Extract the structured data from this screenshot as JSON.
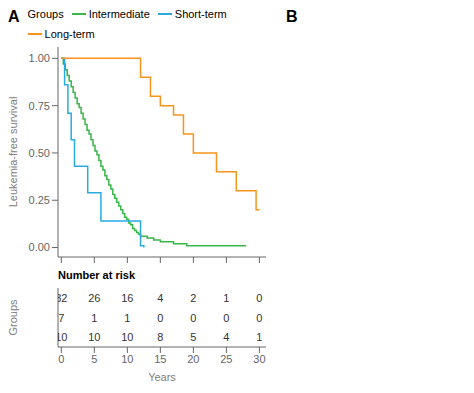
{
  "chart_data": [
    {
      "type": "line",
      "line_style": "step",
      "annotations": [
        "A",
        "B"
      ],
      "ylabel": "Leukemia-free survival",
      "legend_title": "Groups",
      "legend": "top",
      "tick_labels": "y",
      "xlim": [
        -0.5,
        31
      ],
      "ylim": [
        -0.05,
        1.06
      ],
      "xticks": [
        0,
        5,
        10,
        15,
        20,
        25,
        30
      ],
      "yticks": [
        {
          "value": 0.0,
          "label": "0.00"
        },
        {
          "value": 0.25,
          "label": "0.25"
        },
        {
          "value": 0.5,
          "label": "0.50"
        },
        {
          "value": 0.75,
          "label": "0.75"
        },
        {
          "value": 1.0,
          "label": "1.00"
        }
      ],
      "series": [
        {
          "name": "Intermediate",
          "color": "#39b54a",
          "x": [
            0,
            0.3,
            0.6,
            0.9,
            1.2,
            1.5,
            1.8,
            2.1,
            2.4,
            2.7,
            3.0,
            3.3,
            3.6,
            3.9,
            4.2,
            4.5,
            4.8,
            5.1,
            5.4,
            5.7,
            6.0,
            6.3,
            6.6,
            6.9,
            7.2,
            7.5,
            7.8,
            8.1,
            8.4,
            8.7,
            9.0,
            9.3,
            9.6,
            9.9,
            10.2,
            10.5,
            10.8,
            11.1,
            11.4,
            11.7,
            12.0,
            12.5,
            13.0,
            13.5,
            14.0,
            14.5,
            15.0,
            15.5,
            16.0,
            17.0,
            18.0,
            19.0,
            20.0,
            21.0,
            22.0,
            23.0,
            24.0,
            25.0,
            26.0,
            27.0,
            28.0
          ],
          "values": [
            1.0,
            0.97,
            0.94,
            0.91,
            0.88,
            0.85,
            0.82,
            0.79,
            0.76,
            0.74,
            0.71,
            0.68,
            0.65,
            0.62,
            0.6,
            0.57,
            0.54,
            0.51,
            0.49,
            0.46,
            0.43,
            0.41,
            0.38,
            0.36,
            0.33,
            0.31,
            0.28,
            0.26,
            0.24,
            0.22,
            0.2,
            0.18,
            0.16,
            0.15,
            0.13,
            0.12,
            0.1,
            0.09,
            0.08,
            0.07,
            0.06,
            0.06,
            0.05,
            0.05,
            0.04,
            0.04,
            0.03,
            0.03,
            0.03,
            0.02,
            0.02,
            0.01,
            0.01,
            0.01,
            0.01,
            0.01,
            0.01,
            0.01,
            0.01,
            0.01,
            0.01
          ]
        },
        {
          "name": "Short-term",
          "color": "#29abe2",
          "x": [
            0,
            0.5,
            1.0,
            1.5,
            2.0,
            3.0,
            4.0,
            5.0,
            6.0,
            7.0,
            8.0,
            9.0,
            10.0,
            11.0,
            12.0,
            12.5
          ],
          "values": [
            1.0,
            0.86,
            0.71,
            0.57,
            0.43,
            0.43,
            0.29,
            0.29,
            0.14,
            0.14,
            0.14,
            0.14,
            0.14,
            0.14,
            0.01,
            0.0
          ]
        },
        {
          "name": "Long-term",
          "color": "#f7941d",
          "x": [
            0,
            10.0,
            12.0,
            13.5,
            15.0,
            17.0,
            18.5,
            20.0,
            22.0,
            23.5,
            25.0,
            26.5,
            28.0,
            29.5,
            30.0
          ],
          "values": [
            1.0,
            1.0,
            0.9,
            0.8,
            0.75,
            0.7,
            0.6,
            0.5,
            0.5,
            0.4,
            0.4,
            0.3,
            0.3,
            0.2,
            0.2
          ]
        }
      ]
    },
    {
      "type": "table",
      "title": "Number at risk",
      "xlabel": "Years",
      "ylabel": "Groups",
      "tick_labels": "x",
      "xlim": [
        -0.5,
        31
      ],
      "xticks": [
        0,
        5,
        10,
        15,
        20,
        25,
        30
      ],
      "data_labels": true,
      "series": [
        {
          "name": "Intermediate",
          "color": "#39b54a",
          "values": [
            32,
            26,
            16,
            4,
            2,
            1,
            0
          ]
        },
        {
          "name": "Short-term",
          "color": "#29abe2",
          "values": [
            7,
            1,
            1,
            0,
            0,
            0,
            0
          ]
        },
        {
          "name": "Long-term",
          "color": "#f7941d",
          "values": [
            10,
            10,
            10,
            8,
            5,
            4,
            1
          ]
        }
      ]
    }
  ]
}
